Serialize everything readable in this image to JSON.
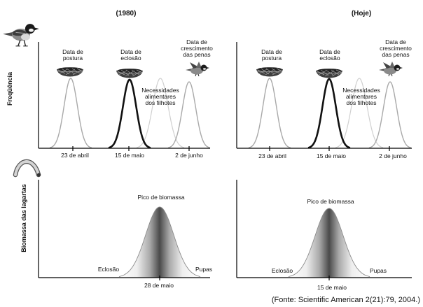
{
  "figure": {
    "past": {
      "title": "(1980)",
      "top": {
        "laying": [
          "Data de",
          "postura"
        ],
        "hatching": [
          "Data de",
          "eclosão"
        ],
        "fledging": [
          "Data de",
          "crescimento",
          "das penas"
        ],
        "chick_needs": [
          "Necessidades",
          "alimentares",
          "dos filhotes"
        ],
        "ticks": [
          "23 de abril",
          "15 de maio",
          "2 de junho"
        ]
      },
      "bottom": {
        "peak_label": "Pico de biomassa",
        "start_label": "Eclosão",
        "end_label": "Pupas",
        "tick": "28 de maio"
      }
    },
    "today": {
      "title": "(Hoje)",
      "top": {
        "laying": [
          "Data de",
          "postura"
        ],
        "hatching": [
          "Data de",
          "eclosão"
        ],
        "fledging": [
          "Data de",
          "crescimento",
          "das penas"
        ],
        "chick_needs": [
          "Necessidades",
          "alimentares",
          "dos filhotes"
        ],
        "ticks": [
          "23 de abril",
          "15 de maio",
          "2 de junho"
        ]
      },
      "bottom": {
        "peak_label": "Pico de biomassa",
        "start_label": "Eclosão",
        "end_label": "Pupas",
        "tick": "15 de maio"
      }
    },
    "axis_labels": {
      "frequency": "Freqüência",
      "biomass": "Biomassa das lagartas"
    }
  },
  "source": "(Fonte: Scientific American 2(21):79, 2004.)",
  "colors": {
    "curve_gray": "#a9a9a9",
    "needs_gray": "#d0d0d0",
    "curve_black": "#111111",
    "outline_gray": "#8c8c8c"
  },
  "icons": {
    "adult_bird": "bird-icon",
    "nest": "nest-icon",
    "fledgling": "fledgling-bird-icon",
    "caterpillar": "caterpillar-icon"
  }
}
